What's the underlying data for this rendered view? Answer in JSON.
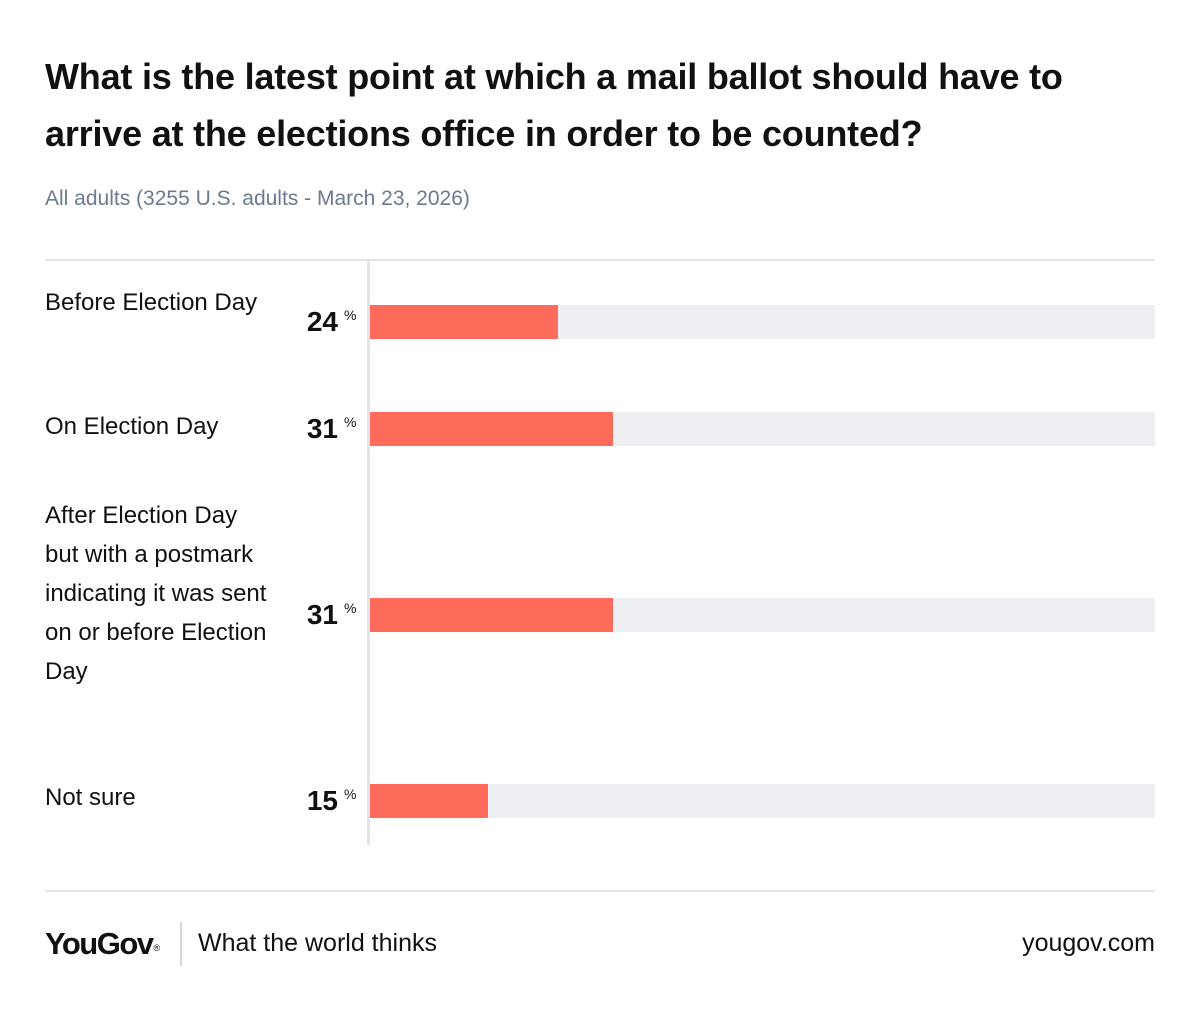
{
  "header": {
    "title": "What is the latest point at which a mail ballot should have to arrive at the elections office in order to be counted?",
    "subtitle": "All adults (3255 U.S. adults - March 23, 2026)"
  },
  "chart_data": {
    "type": "bar",
    "orientation": "horizontal",
    "title": "What is the latest point at which a mail ballot should have to arrive at the elections office in order to be counted?",
    "subtitle": "All adults (3255 U.S. adults - March 23, 2026)",
    "categories": [
      "Before Election Day",
      "On Election Day",
      "After Election Day but with a postmark indicating it was sent on or before Election Day",
      "Not sure"
    ],
    "values": [
      24,
      31,
      31,
      15
    ],
    "value_labels": [
      "24",
      "31",
      "31",
      "15"
    ],
    "unit": "%",
    "xlim": [
      0,
      100
    ],
    "bar_color": "#ff6b5b",
    "track_color": "#eeeff3",
    "xlabel": "",
    "ylabel": ""
  },
  "footer": {
    "brand": "YouGov",
    "brand_mark": "®",
    "tagline": "What the world thinks",
    "site": "yougov.com"
  },
  "colors": {
    "text": "#111111",
    "subtitle": "#6b7a8f",
    "rule": "#e3e4e8"
  }
}
